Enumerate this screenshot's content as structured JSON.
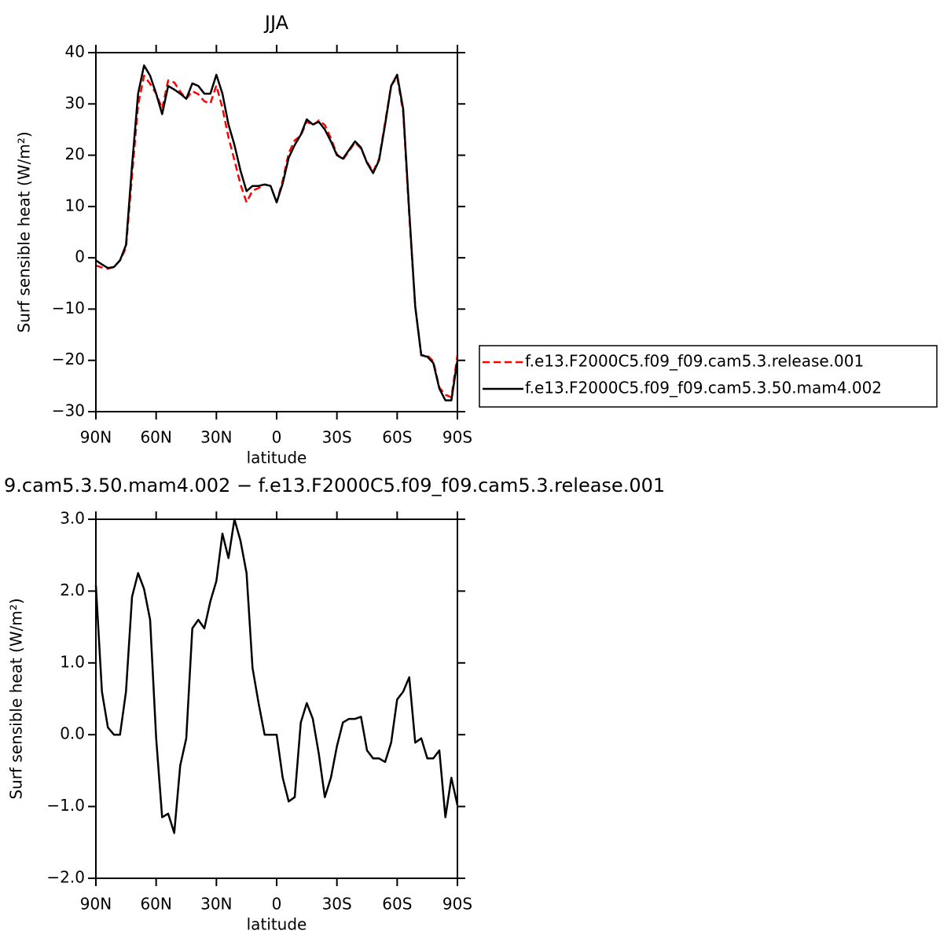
{
  "chart_data": [
    {
      "type": "line",
      "title": "JJA",
      "xlabel": "latitude",
      "ylabel": "Surf sensible heat (W/m²)",
      "x": [
        90,
        87,
        84,
        81,
        78,
        75,
        72,
        69,
        66,
        63,
        60,
        57,
        54,
        51,
        48,
        45,
        42,
        39,
        36,
        33,
        30,
        27,
        24,
        21,
        18,
        15,
        12,
        9,
        6,
        3,
        0,
        -3,
        -6,
        -9,
        -12,
        -15,
        -18,
        -21,
        -24,
        -27,
        -30,
        -33,
        -36,
        -39,
        -42,
        -45,
        -48,
        -51,
        -54,
        -57,
        -60,
        -63,
        -66,
        -69,
        -72,
        -75,
        -78,
        -81,
        -84,
        -87,
        -90
      ],
      "series": [
        {
          "name": "f.e13.F2000C5.f09_f09.cam5.3.release.001",
          "color": "#ff0000",
          "dash": true,
          "values": [
            -1.5,
            -1.9,
            -2.1,
            -1.8,
            -0.5,
            1.9,
            16.1,
            29.8,
            35.5,
            33.9,
            32.0,
            29.1,
            34.6,
            34.2,
            32.4,
            31.0,
            32.5,
            31.9,
            30.5,
            30.1,
            33.6,
            29.2,
            23.5,
            19.0,
            14.3,
            10.8,
            13.1,
            13.6,
            14.3,
            14.0,
            10.8,
            15.1,
            20.4,
            22.9,
            23.8,
            26.6,
            25.8,
            26.8,
            25.9,
            23.3,
            20.2,
            19.1,
            20.8,
            22.5,
            21.3,
            18.7,
            16.8,
            19.3,
            26.4,
            33.6,
            35.2,
            28.4,
            8.2,
            -9.4,
            -19.0,
            -19.0,
            -20.2,
            -25.3,
            -26.7,
            -27.2,
            -19.0
          ]
        },
        {
          "name": "f.e13.F2000C5.f09_f09.cam5.3.50.mam4.002",
          "color": "#000000",
          "dash": false,
          "values": [
            -0.5,
            -1.3,
            -2.0,
            -1.8,
            -0.5,
            2.5,
            18.0,
            32.0,
            37.5,
            35.5,
            32.0,
            28.0,
            33.5,
            32.8,
            32.0,
            31.0,
            34.0,
            33.5,
            32.0,
            32.0,
            35.7,
            32.0,
            26.0,
            22.0,
            17.0,
            13.0,
            14.0,
            14.0,
            14.3,
            14.0,
            10.8,
            14.5,
            19.5,
            22.0,
            24.0,
            27.0,
            26.0,
            26.5,
            25.0,
            22.7,
            20.0,
            19.3,
            21.0,
            22.7,
            21.5,
            18.5,
            16.5,
            19.0,
            26.0,
            33.5,
            35.7,
            29.0,
            9.0,
            -9.5,
            -19.0,
            -19.3,
            -20.5,
            -25.5,
            -27.8,
            -27.8,
            -20.0
          ]
        }
      ],
      "xlim": [
        90,
        -90
      ],
      "xticks": [
        {
          "value": 90,
          "label": "90N"
        },
        {
          "value": 60,
          "label": "60N"
        },
        {
          "value": 30,
          "label": "30N"
        },
        0,
        {
          "value": -30,
          "label": "30S"
        },
        {
          "value": -60,
          "label": "60S"
        },
        {
          "value": -90,
          "label": "90S"
        }
      ],
      "ylim": [
        -30,
        40
      ],
      "yticks": [
        {
          "value": -30,
          "label": "−30"
        },
        {
          "value": -20,
          "label": "−20"
        },
        {
          "value": -10,
          "label": "−10"
        },
        0,
        10,
        20,
        30,
        40
      ],
      "grid": false,
      "legend": "right"
    },
    {
      "type": "line",
      "title": "9.cam5.3.50.mam4.002 − f.e13.F2000C5.f09_f09.cam5.3.release.001",
      "xlabel": "latitude",
      "ylabel": "Surf sensible heat (W/m²)",
      "x": [
        90,
        87,
        84,
        81,
        78,
        75,
        72,
        69,
        66,
        63,
        60,
        57,
        54,
        51,
        48,
        45,
        42,
        39,
        36,
        33,
        30,
        27,
        24,
        21,
        18,
        15,
        12,
        9,
        6,
        3,
        0,
        -3,
        -6,
        -9,
        -12,
        -15,
        -18,
        -21,
        -24,
        -27,
        -30,
        -33,
        -36,
        -39,
        -42,
        -45,
        -48,
        -51,
        -54,
        -57,
        -60,
        -63,
        -66,
        -69,
        -72,
        -75,
        -78,
        -81,
        -84,
        -87,
        -90
      ],
      "color": "#000000",
      "values": [
        2.08,
        0.6,
        0.1,
        0.0,
        0.0,
        0.6,
        1.92,
        2.25,
        2.03,
        1.6,
        -0.05,
        -1.15,
        -1.1,
        -1.37,
        -0.43,
        -0.05,
        1.48,
        1.6,
        1.48,
        1.86,
        2.14,
        2.8,
        2.46,
        3.0,
        2.7,
        2.25,
        0.93,
        0.44,
        0.0,
        0.0,
        0.0,
        -0.6,
        -0.93,
        -0.87,
        0.17,
        0.44,
        0.22,
        -0.27,
        -0.87,
        -0.6,
        -0.16,
        0.17,
        0.22,
        0.22,
        0.25,
        -0.22,
        -0.33,
        -0.33,
        -0.38,
        -0.11,
        0.49,
        0.6,
        0.8,
        -0.11,
        -0.05,
        -0.33,
        -0.33,
        -0.22,
        -1.15,
        -0.6,
        -0.98
      ],
      "xlim": [
        90,
        -90
      ],
      "xticks": [
        {
          "value": 90,
          "label": "90N"
        },
        {
          "value": 60,
          "label": "60N"
        },
        {
          "value": 30,
          "label": "30N"
        },
        0,
        {
          "value": -30,
          "label": "30S"
        },
        {
          "value": -60,
          "label": "60S"
        },
        {
          "value": -90,
          "label": "90S"
        }
      ],
      "ylim": [
        -2,
        3
      ],
      "yticks": [
        {
          "value": -2,
          "label": "−2.0"
        },
        {
          "value": -1,
          "label": "−1.0"
        },
        {
          "value": 0,
          "label": "0.0"
        },
        {
          "value": 1,
          "label": "1.0"
        },
        {
          "value": 2,
          "label": "2.0"
        },
        {
          "value": 3,
          "label": "3.0"
        }
      ],
      "grid": false
    }
  ]
}
